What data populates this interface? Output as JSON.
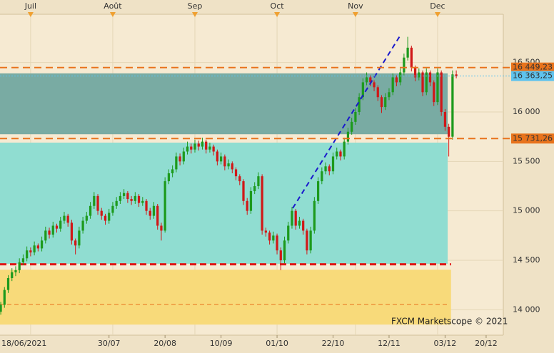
{
  "chart_data": {
    "type": "candlestick",
    "up_color": "#1d9a1d",
    "down_color": "#d01818",
    "ylim": [
      13743,
      16988
    ],
    "yticks": [
      {
        "value": 14000,
        "label": "14 000"
      },
      {
        "value": 14500,
        "label": "14 500"
      },
      {
        "value": 15000,
        "label": "15 000"
      },
      {
        "value": 15500,
        "label": "15 500"
      },
      {
        "value": 16000,
        "label": "16 000"
      },
      {
        "value": 16500,
        "label": "16 500"
      }
    ],
    "xlim": [
      0.8,
      135.6
    ],
    "xticks": [
      {
        "value": 0,
        "label": "18/06/2021"
      },
      {
        "value": 30,
        "label": "30/07"
      },
      {
        "value": 45,
        "label": "20/08"
      },
      {
        "value": 60,
        "label": "10/09"
      },
      {
        "value": 75,
        "label": "01/10"
      },
      {
        "value": 90,
        "label": "22/10"
      },
      {
        "value": 105,
        "label": "12/11"
      },
      {
        "value": 120,
        "label": "03/12"
      },
      {
        "value": 131,
        "label": "20/12"
      }
    ],
    "month_ticks": [
      {
        "value": 9,
        "label": "Juil"
      },
      {
        "value": 31,
        "label": "Août"
      },
      {
        "value": 53,
        "label": "Sep"
      },
      {
        "value": 75,
        "label": "Oct"
      },
      {
        "value": 96,
        "label": "Nov"
      },
      {
        "value": 118,
        "label": "Dec"
      }
    ],
    "zones": [
      {
        "from": 15775,
        "to": 16390,
        "x_end": 120.7,
        "color": "#79aba3"
      },
      {
        "from": 14465,
        "to": 15690,
        "x_end": 120.7,
        "color": "#90ddd1"
      },
      {
        "from": 13850,
        "to": 14405,
        "x_end": 121.6,
        "color": "#f8da7a"
      }
    ],
    "lines": [
      {
        "value": 14460,
        "x_end": 121.6,
        "color": "#e01515",
        "width": 3,
        "dash": "9 5"
      },
      {
        "value": 14055,
        "x_end": 120.5,
        "color": "#e8731c",
        "width": 1,
        "dash": "6 4"
      }
    ],
    "trend": {
      "x": [
        79.2,
        108.2
      ],
      "y": [
        15027,
        16786
      ],
      "color": "#1a1acc"
    },
    "levels": [
      {
        "value": 16449.23,
        "label": "16 449,23",
        "color": "#e8731c",
        "style": "dashed"
      },
      {
        "value": 16363.25,
        "label": "16 363,25",
        "color": "#5fc3ee",
        "style": "dotted"
      },
      {
        "value": 15731.26,
        "label": "15 731,26",
        "color": "#e8731c",
        "style": "dashed"
      }
    ],
    "watermark": "FXCM Marketscope © 2021",
    "candles": [
      [
        13980,
        14080,
        13950,
        14050
      ],
      [
        14050,
        14230,
        14020,
        14200
      ],
      [
        14200,
        14350,
        14170,
        14320
      ],
      [
        14320,
        14420,
        14290,
        14380
      ],
      [
        14380,
        14440,
        14340,
        14400
      ],
      [
        14400,
        14520,
        14370,
        14480
      ],
      [
        14480,
        14560,
        14450,
        14520
      ],
      [
        14520,
        14640,
        14490,
        14600
      ],
      [
        14600,
        14630,
        14540,
        14580
      ],
      [
        14580,
        14690,
        14550,
        14650
      ],
      [
        14650,
        14670,
        14590,
        14620
      ],
      [
        14620,
        14740,
        14590,
        14700
      ],
      [
        14700,
        14840,
        14670,
        14800
      ],
      [
        14800,
        14830,
        14720,
        14760
      ],
      [
        14760,
        14890,
        14730,
        14850
      ],
      [
        14850,
        14870,
        14780,
        14820
      ],
      [
        14820,
        14940,
        14790,
        14900
      ],
      [
        14900,
        14990,
        14870,
        14950
      ],
      [
        14950,
        14970,
        14840,
        14880
      ],
      [
        14880,
        14910,
        14660,
        14700
      ],
      [
        14700,
        14720,
        14560,
        14650
      ],
      [
        14650,
        14840,
        14620,
        14800
      ],
      [
        14800,
        14940,
        14770,
        14900
      ],
      [
        14900,
        14990,
        14870,
        14950
      ],
      [
        14950,
        15090,
        14920,
        15050
      ],
      [
        15050,
        15190,
        15020,
        15150
      ],
      [
        15150,
        15170,
        14960,
        15000
      ],
      [
        15000,
        15030,
        14910,
        14950
      ],
      [
        14950,
        14970,
        14860,
        14900
      ],
      [
        14900,
        15020,
        14870,
        14980
      ],
      [
        14980,
        15090,
        14950,
        15050
      ],
      [
        15050,
        15140,
        15020,
        15100
      ],
      [
        15100,
        15190,
        15070,
        15150
      ],
      [
        15150,
        15220,
        15120,
        15180
      ],
      [
        15180,
        15200,
        15080,
        15120
      ],
      [
        15120,
        15150,
        15060,
        15100
      ],
      [
        15100,
        15190,
        15070,
        15150
      ],
      [
        15150,
        15170,
        15040,
        15080
      ],
      [
        15080,
        15140,
        15050,
        15100
      ],
      [
        15100,
        15120,
        14960,
        15000
      ],
      [
        15000,
        15030,
        14910,
        14950
      ],
      [
        14950,
        15090,
        14920,
        15050
      ],
      [
        15050,
        15070,
        14810,
        14850
      ],
      [
        14850,
        14880,
        14700,
        14800
      ],
      [
        14800,
        15340,
        14780,
        15300
      ],
      [
        15300,
        15420,
        15270,
        15380
      ],
      [
        15380,
        15460,
        15340,
        15420
      ],
      [
        15420,
        15590,
        15390,
        15550
      ],
      [
        15550,
        15580,
        15460,
        15500
      ],
      [
        15500,
        15640,
        15470,
        15600
      ],
      [
        15600,
        15700,
        15570,
        15650
      ],
      [
        15650,
        15680,
        15580,
        15620
      ],
      [
        15620,
        15720,
        15590,
        15680
      ],
      [
        15680,
        15710,
        15610,
        15650
      ],
      [
        15650,
        15740,
        15620,
        15700
      ],
      [
        15700,
        15720,
        15580,
        15620
      ],
      [
        15620,
        15690,
        15590,
        15650
      ],
      [
        15650,
        15670,
        15560,
        15600
      ],
      [
        15600,
        15620,
        15460,
        15500
      ],
      [
        15500,
        15590,
        15470,
        15550
      ],
      [
        15550,
        15570,
        15410,
        15450
      ],
      [
        15450,
        15520,
        15420,
        15480
      ],
      [
        15480,
        15500,
        15380,
        15420
      ],
      [
        15420,
        15440,
        15310,
        15350
      ],
      [
        15350,
        15370,
        15260,
        15300
      ],
      [
        15300,
        15320,
        15060,
        15100
      ],
      [
        15100,
        15130,
        14960,
        15000
      ],
      [
        15000,
        15240,
        14970,
        15200
      ],
      [
        15200,
        15290,
        15170,
        15250
      ],
      [
        15250,
        15390,
        15220,
        15350
      ],
      [
        15350,
        15370,
        14760,
        14800
      ],
      [
        14800,
        14830,
        14740,
        14780
      ],
      [
        14780,
        14800,
        14660,
        14700
      ],
      [
        14700,
        14790,
        14670,
        14750
      ],
      [
        14750,
        14770,
        14560,
        14600
      ],
      [
        14600,
        14630,
        14400,
        14500
      ],
      [
        14500,
        14740,
        14470,
        14700
      ],
      [
        14700,
        14890,
        14670,
        14850
      ],
      [
        14850,
        15040,
        14820,
        15000
      ],
      [
        15000,
        15020,
        14810,
        14850
      ],
      [
        14850,
        14940,
        14820,
        14900
      ],
      [
        14900,
        14920,
        14760,
        14800
      ],
      [
        14800,
        14820,
        14560,
        14600
      ],
      [
        14600,
        14840,
        14570,
        14800
      ],
      [
        14800,
        15140,
        14770,
        15100
      ],
      [
        15100,
        15340,
        15070,
        15300
      ],
      [
        15300,
        15440,
        15270,
        15400
      ],
      [
        15400,
        15490,
        15370,
        15450
      ],
      [
        15450,
        15470,
        15360,
        15400
      ],
      [
        15400,
        15590,
        15370,
        15550
      ],
      [
        15550,
        15640,
        15520,
        15600
      ],
      [
        15600,
        15620,
        15510,
        15550
      ],
      [
        15550,
        15740,
        15520,
        15700
      ],
      [
        15700,
        15840,
        15670,
        15800
      ],
      [
        15800,
        15940,
        15770,
        15900
      ],
      [
        15900,
        16040,
        15870,
        16000
      ],
      [
        16000,
        16190,
        15970,
        16150
      ],
      [
        16150,
        16340,
        16120,
        16300
      ],
      [
        16300,
        16400,
        16270,
        16350
      ],
      [
        16350,
        16370,
        16260,
        16300
      ],
      [
        16300,
        16320,
        16210,
        16250
      ],
      [
        16250,
        16270,
        16110,
        16150
      ],
      [
        16150,
        16170,
        15990,
        16050
      ],
      [
        16050,
        16190,
        16020,
        16150
      ],
      [
        16150,
        16240,
        16120,
        16200
      ],
      [
        16200,
        16390,
        16170,
        16350
      ],
      [
        16350,
        16370,
        16260,
        16300
      ],
      [
        16300,
        16440,
        16270,
        16400
      ],
      [
        16400,
        16590,
        16370,
        16550
      ],
      [
        16550,
        16760,
        16520,
        16650
      ],
      [
        16650,
        16670,
        16410,
        16450
      ],
      [
        16450,
        16470,
        16310,
        16350
      ],
      [
        16350,
        16440,
        16320,
        16400
      ],
      [
        16400,
        16420,
        16160,
        16200
      ],
      [
        16200,
        16440,
        16170,
        16400
      ],
      [
        16400,
        16420,
        16260,
        16300
      ],
      [
        16300,
        16320,
        16060,
        16100
      ],
      [
        16100,
        16440,
        16070,
        16400
      ],
      [
        16400,
        16420,
        15960,
        16000
      ],
      [
        16000,
        16030,
        15810,
        15850
      ],
      [
        15850,
        15880,
        15550,
        15750
      ],
      [
        15750,
        16420,
        15720,
        16380
      ],
      [
        16380,
        16420,
        16340,
        16363.25
      ]
    ]
  }
}
